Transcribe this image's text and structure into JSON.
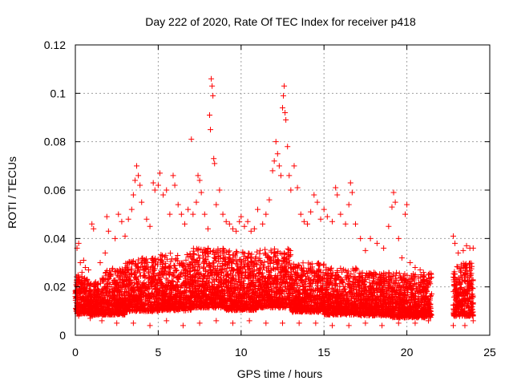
{
  "chart_data": {
    "type": "scatter",
    "title": "Day 222 of 2020, Rate Of TEC Index for receiver p418",
    "xlabel": "GPS time / hours",
    "ylabel": "ROTI / TECUs",
    "xlim": [
      0,
      25
    ],
    "ylim": [
      0,
      0.12
    ],
    "xticks": [
      0,
      5,
      10,
      15,
      20,
      25
    ],
    "xtick_labels": [
      "0",
      "5",
      "10",
      "15",
      "20",
      "25"
    ],
    "yticks": [
      0,
      0.02,
      0.04,
      0.06,
      0.08,
      0.1,
      0.12
    ],
    "ytick_labels": [
      "0",
      "0.02",
      "0.04",
      "0.06",
      "0.08",
      "0.1",
      "0.12"
    ],
    "grid": true,
    "marker": "+",
    "color": "#ff0000",
    "series": [
      {
        "points": [
          [
            0.1,
            0.036
          ],
          [
            0.2,
            0.038
          ],
          [
            0.3,
            0.03
          ],
          [
            0.4,
            0.026
          ],
          [
            0.5,
            0.031
          ],
          [
            0.6,
            0.028
          ],
          [
            0.8,
            0.027
          ],
          [
            1.0,
            0.046
          ],
          [
            1.1,
            0.044
          ],
          [
            1.5,
            0.03
          ],
          [
            1.8,
            0.034
          ],
          [
            1.9,
            0.049
          ],
          [
            2.0,
            0.043
          ],
          [
            2.4,
            0.04
          ],
          [
            2.6,
            0.05
          ],
          [
            2.8,
            0.047
          ],
          [
            3.0,
            0.041
          ],
          [
            3.2,
            0.048
          ],
          [
            3.4,
            0.052
          ],
          [
            3.5,
            0.058
          ],
          [
            3.6,
            0.064
          ],
          [
            3.7,
            0.07
          ],
          [
            3.8,
            0.066
          ],
          [
            3.9,
            0.062
          ],
          [
            4.0,
            0.055
          ],
          [
            4.3,
            0.048
          ],
          [
            4.5,
            0.045
          ],
          [
            4.7,
            0.063
          ],
          [
            4.8,
            0.06
          ],
          [
            5.0,
            0.062
          ],
          [
            5.1,
            0.067
          ],
          [
            5.3,
            0.058
          ],
          [
            5.5,
            0.06
          ],
          [
            5.7,
            0.05
          ],
          [
            5.9,
            0.066
          ],
          [
            6.0,
            0.062
          ],
          [
            6.2,
            0.054
          ],
          [
            6.4,
            0.05
          ],
          [
            6.6,
            0.046
          ],
          [
            6.8,
            0.052
          ],
          [
            7.0,
            0.081
          ],
          [
            7.1,
            0.05
          ],
          [
            7.3,
            0.055
          ],
          [
            7.4,
            0.066
          ],
          [
            7.5,
            0.064
          ],
          [
            7.6,
            0.059
          ],
          [
            7.8,
            0.05
          ],
          [
            8.0,
            0.044
          ],
          [
            8.1,
            0.091
          ],
          [
            8.15,
            0.085
          ],
          [
            8.2,
            0.106
          ],
          [
            8.25,
            0.103
          ],
          [
            8.3,
            0.099
          ],
          [
            8.35,
            0.073
          ],
          [
            8.4,
            0.071
          ],
          [
            8.5,
            0.054
          ],
          [
            8.7,
            0.06
          ],
          [
            8.9,
            0.05
          ],
          [
            9.1,
            0.047
          ],
          [
            9.3,
            0.046
          ],
          [
            9.5,
            0.044
          ],
          [
            9.7,
            0.043
          ],
          [
            9.9,
            0.047
          ],
          [
            10.0,
            0.049
          ],
          [
            10.2,
            0.045
          ],
          [
            10.4,
            0.047
          ],
          [
            10.6,
            0.043
          ],
          [
            10.8,
            0.044
          ],
          [
            11.0,
            0.052
          ],
          [
            11.3,
            0.046
          ],
          [
            11.5,
            0.05
          ],
          [
            11.7,
            0.056
          ],
          [
            11.9,
            0.068
          ],
          [
            12.0,
            0.072
          ],
          [
            12.1,
            0.08
          ],
          [
            12.2,
            0.075
          ],
          [
            12.3,
            0.07
          ],
          [
            12.4,
            0.066
          ],
          [
            12.5,
            0.094
          ],
          [
            12.55,
            0.099
          ],
          [
            12.6,
            0.103
          ],
          [
            12.65,
            0.092
          ],
          [
            12.7,
            0.089
          ],
          [
            12.8,
            0.078
          ],
          [
            12.9,
            0.066
          ],
          [
            13.0,
            0.06
          ],
          [
            13.2,
            0.07
          ],
          [
            13.4,
            0.061
          ],
          [
            13.6,
            0.05
          ],
          [
            13.8,
            0.047
          ],
          [
            14.0,
            0.046
          ],
          [
            14.2,
            0.051
          ],
          [
            14.4,
            0.058
          ],
          [
            14.6,
            0.055
          ],
          [
            14.8,
            0.048
          ],
          [
            15.0,
            0.052
          ],
          [
            15.2,
            0.049
          ],
          [
            15.5,
            0.047
          ],
          [
            15.7,
            0.061
          ],
          [
            15.8,
            0.058
          ],
          [
            16.0,
            0.05
          ],
          [
            16.3,
            0.046
          ],
          [
            16.5,
            0.054
          ],
          [
            16.6,
            0.063
          ],
          [
            16.7,
            0.059
          ],
          [
            16.9,
            0.046
          ],
          [
            17.2,
            0.04
          ],
          [
            17.5,
            0.035
          ],
          [
            17.8,
            0.04
          ],
          [
            18.2,
            0.038
          ],
          [
            18.6,
            0.036
          ],
          [
            18.9,
            0.045
          ],
          [
            19.1,
            0.053
          ],
          [
            19.2,
            0.059
          ],
          [
            19.3,
            0.055
          ],
          [
            19.5,
            0.04
          ],
          [
            19.7,
            0.032
          ],
          [
            19.9,
            0.05
          ],
          [
            20.0,
            0.054
          ],
          [
            20.2,
            0.03
          ],
          [
            20.5,
            0.028
          ],
          [
            20.8,
            0.027
          ],
          [
            21.0,
            0.026
          ],
          [
            21.3,
            0.025
          ],
          [
            22.8,
            0.041
          ],
          [
            22.9,
            0.038
          ],
          [
            23.1,
            0.034
          ],
          [
            23.4,
            0.035
          ],
          [
            23.6,
            0.037
          ],
          [
            23.8,
            0.036
          ],
          [
            24.0,
            0.036
          ],
          [
            0.2,
            0.008
          ],
          [
            0.5,
            0.012
          ],
          [
            0.9,
            0.007
          ],
          [
            1.6,
            0.006
          ],
          [
            2.5,
            0.005
          ],
          [
            3.5,
            0.005
          ],
          [
            4.5,
            0.004
          ],
          [
            5.5,
            0.006
          ],
          [
            6.5,
            0.004
          ],
          [
            7.5,
            0.005
          ],
          [
            8.5,
            0.006
          ],
          [
            9.5,
            0.005
          ],
          [
            10.5,
            0.006
          ],
          [
            11.5,
            0.005
          ],
          [
            12.5,
            0.005
          ],
          [
            13.5,
            0.005
          ],
          [
            14.5,
            0.005
          ],
          [
            15.5,
            0.004
          ],
          [
            16.5,
            0.004
          ],
          [
            17.5,
            0.005
          ],
          [
            18.5,
            0.004
          ],
          [
            19.5,
            0.005
          ],
          [
            20.5,
            0.005
          ],
          [
            21.3,
            0.006
          ],
          [
            22.8,
            0.004
          ],
          [
            23.5,
            0.004
          ],
          [
            24.0,
            0.006
          ]
        ]
      }
    ],
    "bulk_envelope": [
      {
        "start": 0.0,
        "end": 0.8,
        "low": 0.006,
        "high": 0.025
      },
      {
        "start": 0.8,
        "end": 1.6,
        "low": 0.006,
        "high": 0.022
      },
      {
        "start": 1.6,
        "end": 3.0,
        "low": 0.005,
        "high": 0.028
      },
      {
        "start": 3.0,
        "end": 5.0,
        "low": 0.006,
        "high": 0.032
      },
      {
        "start": 5.0,
        "end": 7.0,
        "low": 0.006,
        "high": 0.034
      },
      {
        "start": 7.0,
        "end": 9.0,
        "low": 0.007,
        "high": 0.036
      },
      {
        "start": 9.0,
        "end": 11.0,
        "low": 0.006,
        "high": 0.035
      },
      {
        "start": 11.0,
        "end": 13.0,
        "low": 0.007,
        "high": 0.036
      },
      {
        "start": 13.0,
        "end": 15.0,
        "low": 0.006,
        "high": 0.03
      },
      {
        "start": 15.0,
        "end": 17.0,
        "low": 0.005,
        "high": 0.028
      },
      {
        "start": 17.0,
        "end": 19.0,
        "low": 0.005,
        "high": 0.026
      },
      {
        "start": 19.0,
        "end": 21.5,
        "low": 0.004,
        "high": 0.026
      },
      {
        "start": 22.8,
        "end": 24.0,
        "low": 0.004,
        "high": 0.03
      }
    ]
  }
}
